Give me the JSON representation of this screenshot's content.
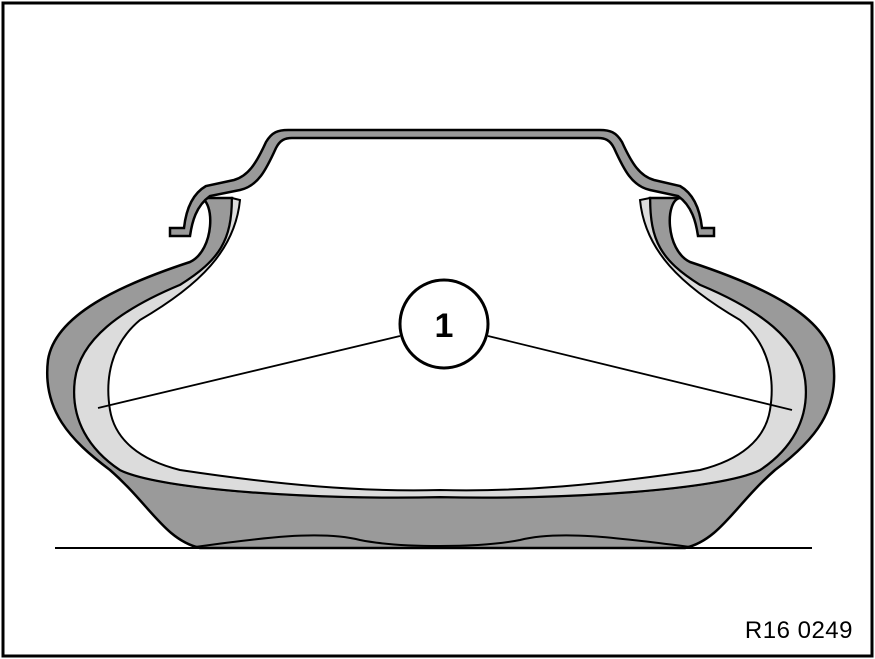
{
  "figure": {
    "reference_code": "R16 0249",
    "callout": {
      "number": "1"
    },
    "colors": {
      "outline": "#000000",
      "tire_outer": "#9a9a9a",
      "tire_inner_wear_zone": "#dcdcdc",
      "background": "#ffffff"
    }
  }
}
